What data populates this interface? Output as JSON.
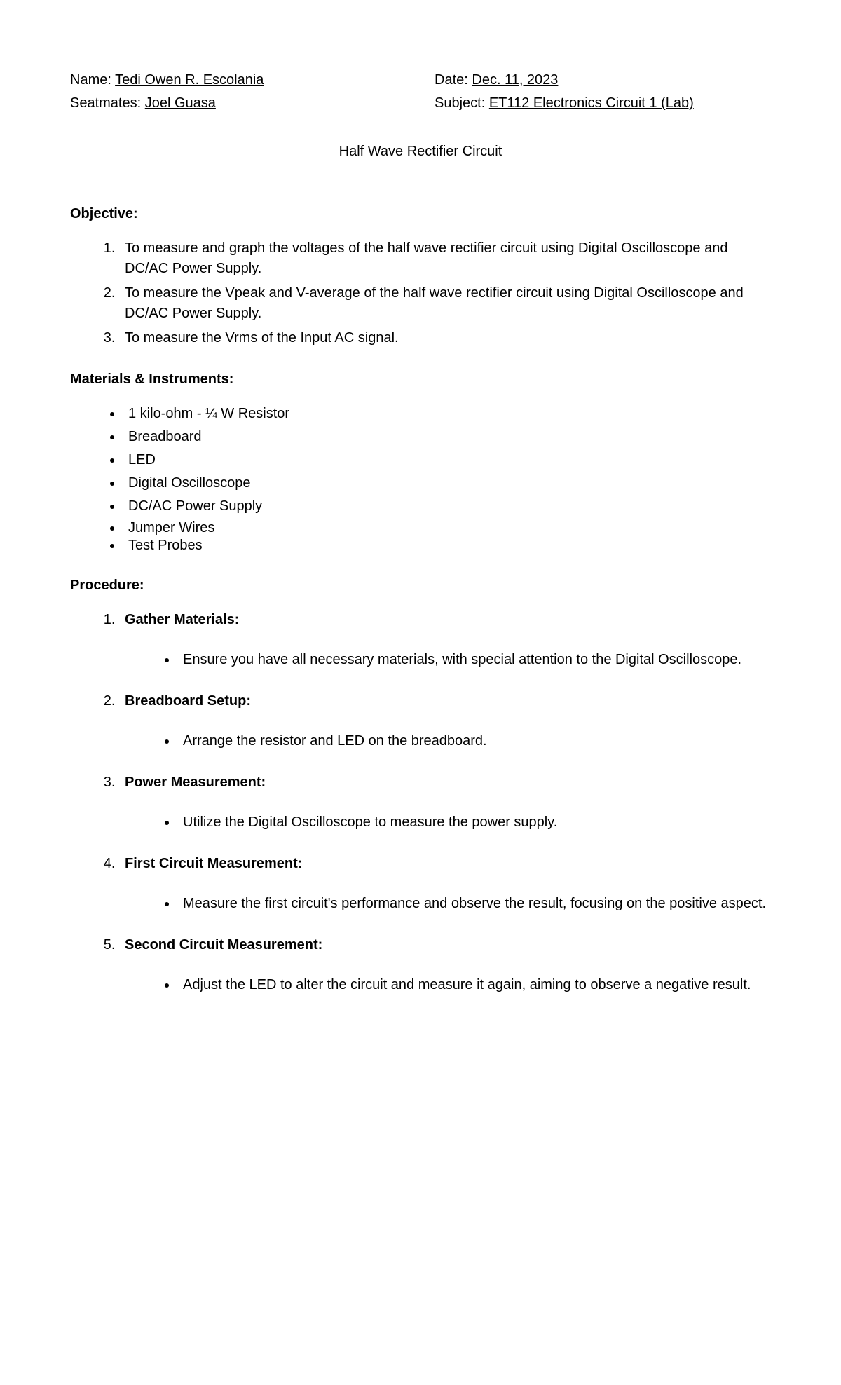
{
  "header": {
    "name_label": "Name:",
    "name_value": "Tedi Owen R. Escolania",
    "date_label": "Date:",
    "date_value": "Dec. 11, 2023",
    "seatmates_label": "Seatmates:",
    "seatmates_value": "Joel Guasa",
    "subject_label": "Subject:",
    "subject_value": "ET112 Electronics Circuit 1 (Lab)"
  },
  "title": "Half Wave Rectifier Circuit",
  "sections": {
    "objective_heading": "Objective:",
    "objectives": [
      "To measure and graph the voltages of the half wave rectifier circuit using Digital Oscilloscope and DC/AC Power Supply.",
      "To measure the Vpeak and V-average of the half wave rectifier circuit using Digital Oscilloscope and DC/AC Power Supply.",
      "To measure the Vrms of the Input AC signal."
    ],
    "materials_heading": "Materials & Instruments:",
    "materials": [
      "1 kilo-ohm - ¼ W Resistor",
      "Breadboard",
      "LED",
      "Digital Oscilloscope",
      "DC/AC Power Supply",
      "Jumper Wires",
      "Test Probes"
    ],
    "procedure_heading": "Procedure:",
    "procedure": [
      {
        "title": "Gather Materials:",
        "detail": "Ensure you have all necessary materials, with special attention to the Digital Oscilloscope."
      },
      {
        "title": "Breadboard Setup:",
        "detail": "Arrange the resistor and LED on the breadboard."
      },
      {
        "title": "Power Measurement:",
        "detail": "Utilize the Digital Oscilloscope to measure the power supply."
      },
      {
        "title": "First Circuit Measurement:",
        "detail": "Measure the first circuit's performance and observe the result, focusing on the positive aspect."
      },
      {
        "title": "Second Circuit Measurement:",
        "detail": "Adjust the LED to alter the circuit and measure it again, aiming to observe a negative result."
      }
    ]
  }
}
